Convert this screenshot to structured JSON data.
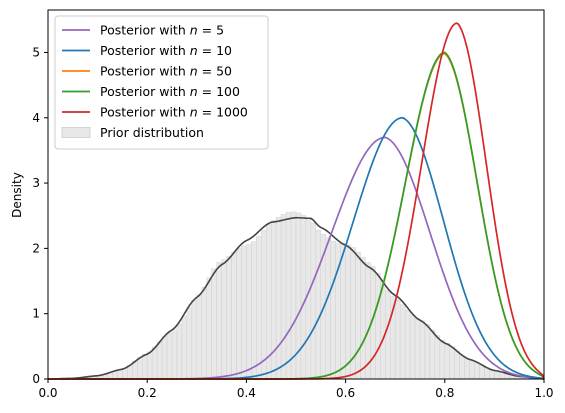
{
  "chart_data": {
    "type": "line",
    "title": "",
    "xlabel": "",
    "ylabel": "Density",
    "xlim": [
      0,
      1
    ],
    "ylim": [
      0,
      5.65
    ],
    "x_ticks": [
      "0.0",
      "0.2",
      "0.4",
      "0.6",
      "0.8",
      "1.0"
    ],
    "y_ticks": [
      "0",
      "1",
      "2",
      "3",
      "4",
      "5"
    ],
    "grid": false,
    "legend_placement": "top-left",
    "series": [
      {
        "name": "Posterior with n = 5",
        "label_prefix": "Posterior with ",
        "label_var": "n",
        "label_suffix": " = 5",
        "color": "#9467bd",
        "mode": 0.68,
        "peak": 3.7,
        "sd": 0.108
      },
      {
        "name": "Posterior with n = 10",
        "label_prefix": "Posterior with ",
        "label_var": "n",
        "label_suffix": " = 10",
        "color": "#1f77b4",
        "mode": 0.715,
        "peak": 4.0,
        "sd": 0.099
      },
      {
        "name": "Posterior with n = 50",
        "label_prefix": "Posterior with ",
        "label_var": "n",
        "label_suffix": " = 50",
        "color": "#ff7f0e",
        "mode": 0.8,
        "peak": 4.98,
        "sd": 0.079
      },
      {
        "name": "Posterior with n = 100",
        "label_prefix": "Posterior with ",
        "label_var": "n",
        "label_suffix": " = 100",
        "color": "#2ca02c",
        "mode": 0.8,
        "peak": 5.0,
        "sd": 0.079
      },
      {
        "name": "Posterior with n = 1000",
        "label_prefix": "Posterior with ",
        "label_var": "n",
        "label_suffix": " = 1000",
        "color": "#d62728",
        "mode": 0.825,
        "peak": 5.45,
        "sd": 0.0715
      }
    ],
    "prior": {
      "name": "Prior distribution",
      "bar_color": "#e8e8e8",
      "kde_color": "#444444",
      "x": [
        0.0,
        0.05,
        0.1,
        0.15,
        0.2,
        0.25,
        0.3,
        0.35,
        0.4,
        0.45,
        0.5,
        0.53,
        0.55,
        0.6,
        0.65,
        0.7,
        0.75,
        0.8,
        0.85,
        0.9,
        0.95,
        1.0
      ],
      "y": [
        0.0,
        0.01,
        0.05,
        0.15,
        0.38,
        0.75,
        1.25,
        1.75,
        2.12,
        2.4,
        2.47,
        2.46,
        2.32,
        2.05,
        1.7,
        1.28,
        0.9,
        0.55,
        0.3,
        0.13,
        0.04,
        0.0
      ]
    }
  }
}
